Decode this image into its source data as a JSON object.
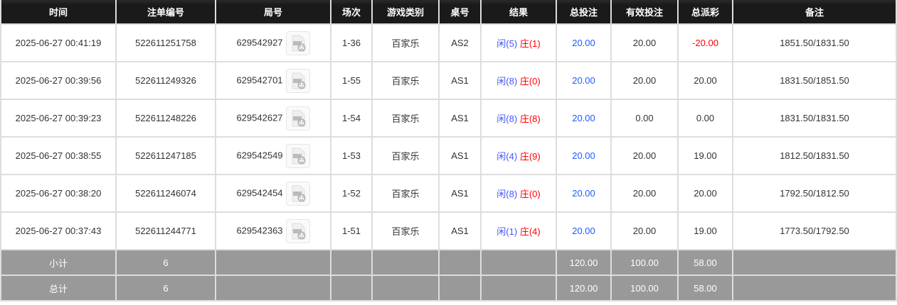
{
  "headers": [
    "时间",
    "注单编号",
    "局号",
    "场次",
    "游戏类别",
    "桌号",
    "结果",
    "总投注",
    "有效投注",
    "总派彩",
    "备注"
  ],
  "rows": [
    {
      "time": "2025-06-27 00:41:19",
      "bet_id": "522611251758",
      "round": "629542927",
      "session": "1-36",
      "game": "百家乐",
      "table": "AS2",
      "player": "闲(5)",
      "banker": "庄(1)",
      "total_bet": "20.00",
      "valid_bet": "20.00",
      "payout": "-20.00",
      "payout_negative": true,
      "note": "1851.50/1831.50"
    },
    {
      "time": "2025-06-27 00:39:56",
      "bet_id": "522611249326",
      "round": "629542701",
      "session": "1-55",
      "game": "百家乐",
      "table": "AS1",
      "player": "闲(8)",
      "banker": "庄(0)",
      "total_bet": "20.00",
      "valid_bet": "20.00",
      "payout": "20.00",
      "note": "1831.50/1851.50"
    },
    {
      "time": "2025-06-27 00:39:23",
      "bet_id": "522611248226",
      "round": "629542627",
      "session": "1-54",
      "game": "百家乐",
      "table": "AS1",
      "player": "闲(8)",
      "banker": "庄(8)",
      "total_bet": "20.00",
      "valid_bet": "0.00",
      "payout": "0.00",
      "note": "1831.50/1831.50"
    },
    {
      "time": "2025-06-27 00:38:55",
      "bet_id": "522611247185",
      "round": "629542549",
      "session": "1-53",
      "game": "百家乐",
      "table": "AS1",
      "player": "闲(4)",
      "banker": "庄(9)",
      "total_bet": "20.00",
      "valid_bet": "20.00",
      "payout": "19.00",
      "note": "1812.50/1831.50"
    },
    {
      "time": "2025-06-27 00:38:20",
      "bet_id": "522611246074",
      "round": "629542454",
      "session": "1-52",
      "game": "百家乐",
      "table": "AS1",
      "player": "闲(8)",
      "banker": "庄(0)",
      "total_bet": "20.00",
      "valid_bet": "20.00",
      "payout": "20.00",
      "note": "1792.50/1812.50"
    },
    {
      "time": "2025-06-27 00:37:43",
      "bet_id": "522611244771",
      "round": "629542363",
      "session": "1-51",
      "game": "百家乐",
      "table": "AS1",
      "player": "闲(1)",
      "banker": "庄(4)",
      "total_bet": "20.00",
      "valid_bet": "20.00",
      "payout": "19.00",
      "note": "1773.50/1792.50"
    }
  ],
  "subtotal": {
    "label": "小计",
    "count": "6",
    "total_bet": "120.00",
    "valid_bet": "100.00",
    "payout": "58.00"
  },
  "total": {
    "label": "总计",
    "count": "6",
    "total_bet": "120.00",
    "valid_bet": "100.00",
    "payout": "58.00"
  },
  "colors": {
    "header_bg": "#1a1a1a",
    "footer_bg": "#999999",
    "bet_blue": "#1a5cff",
    "negative_red": "#ff0000"
  }
}
